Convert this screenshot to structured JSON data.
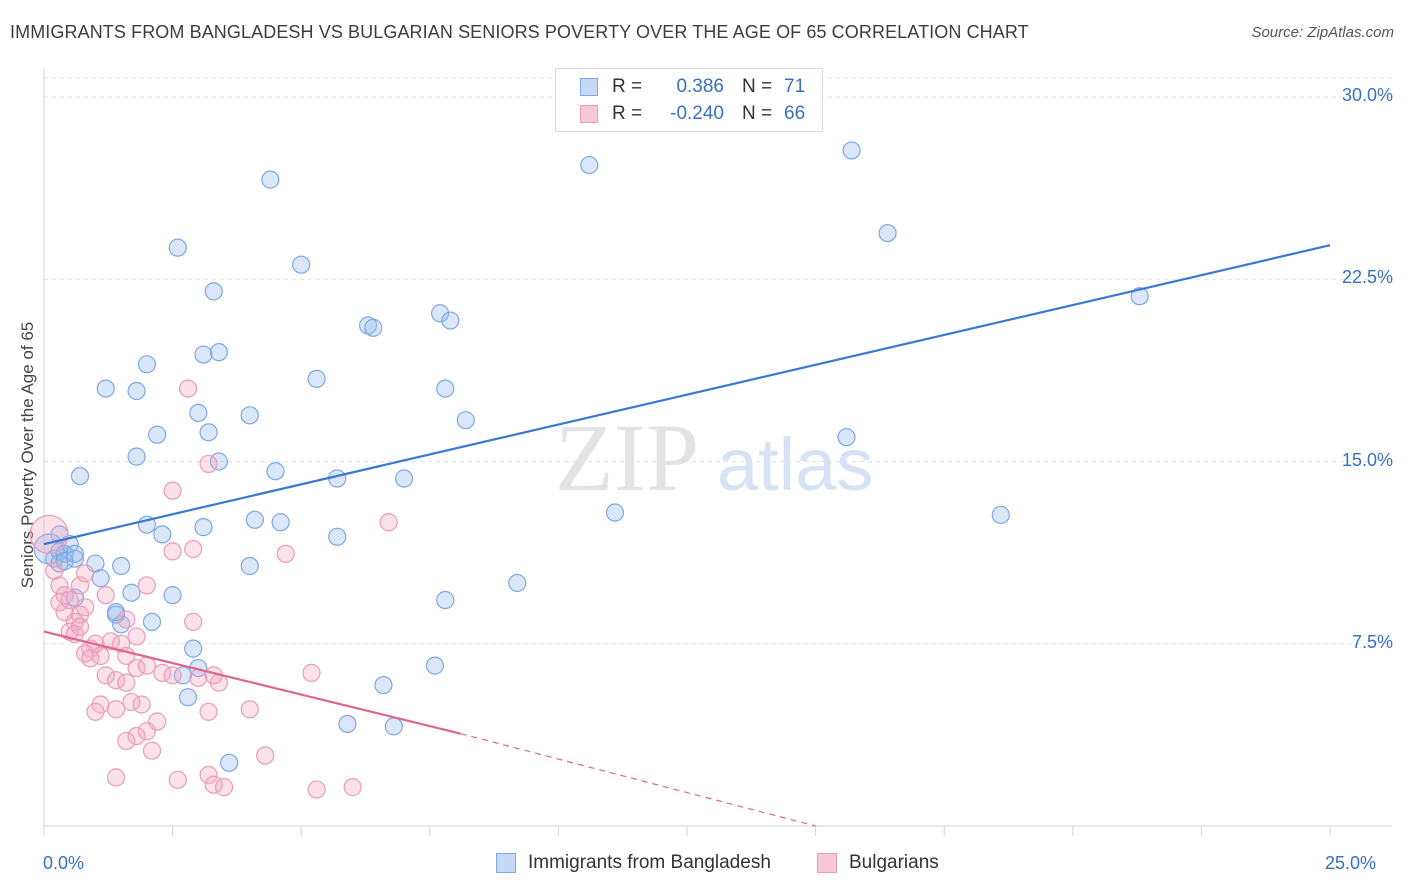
{
  "title": "IMMIGRANTS FROM BANGLADESH VS BULGARIAN SENIORS POVERTY OVER THE AGE OF 65 CORRELATION CHART",
  "source": "Source: ZipAtlas.com",
  "watermark": {
    "zip": "ZIP",
    "atlas": "atlas"
  },
  "colors": {
    "blue": "#3a78d6",
    "blue_fill": "rgba(150,185,235,0.35)",
    "blue_stroke": "#7fa7e3",
    "pink": "#e06590",
    "pink_fill": "rgba(240,170,195,0.35)",
    "pink_stroke": "#ea9cb8",
    "grid": "#dde3ea",
    "axis_text": "#3a6fc4"
  },
  "legend_top": [
    {
      "r_label": "R =",
      "r_value": "0.386",
      "n_label": "N =",
      "n_value": "71",
      "color": "blue"
    },
    {
      "r_label": "R =",
      "r_value": "-0.240",
      "n_label": "N =",
      "n_value": "66",
      "color": "pink"
    }
  ],
  "chart_data": {
    "type": "scatter",
    "title": "IMMIGRANTS FROM BANGLADESH VS BULGARIAN SENIORS POVERTY OVER THE AGE OF 65 CORRELATION CHART",
    "xlabel": "",
    "ylabel": "Seniors Poverty Over the Age of 65",
    "xlim": [
      0,
      25
    ],
    "ylim": [
      0,
      30.5
    ],
    "x_tick_labels": [
      "0.0%",
      "25.0%"
    ],
    "y_tick_labels": [
      "7.5%",
      "15.0%",
      "22.5%",
      "30.0%"
    ],
    "y_ticks": [
      7.5,
      15.0,
      22.5,
      30.0
    ],
    "grid": true,
    "legend_position": "top-center",
    "series": [
      {
        "name": "Immigrants from Bangladesh",
        "color": "blue",
        "trend": {
          "x": [
            0,
            25
          ],
          "y": [
            11.6,
            23.9
          ]
        },
        "points": [
          [
            0.1,
            11.4
          ],
          [
            0.2,
            11.0
          ],
          [
            0.3,
            11.3
          ],
          [
            0.4,
            11.2
          ],
          [
            0.3,
            12.0
          ],
          [
            0.5,
            11.6
          ],
          [
            0.6,
            11.0
          ],
          [
            0.3,
            10.8
          ],
          [
            0.4,
            10.9
          ],
          [
            0.6,
            9.4
          ],
          [
            1.0,
            10.8
          ],
          [
            1.1,
            10.2
          ],
          [
            1.5,
            10.7
          ],
          [
            1.7,
            9.6
          ],
          [
            1.4,
            8.7
          ],
          [
            1.5,
            8.3
          ],
          [
            2.1,
            8.4
          ],
          [
            2.5,
            9.5
          ],
          [
            2.3,
            12.0
          ],
          [
            2.0,
            12.4
          ],
          [
            2.7,
            6.2
          ],
          [
            2.8,
            5.3
          ],
          [
            2.9,
            7.3
          ],
          [
            3.0,
            6.5
          ],
          [
            3.6,
            2.6
          ],
          [
            3.1,
            12.3
          ],
          [
            3.4,
            15.0
          ],
          [
            3.2,
            16.2
          ],
          [
            3.0,
            17.0
          ],
          [
            2.2,
            16.1
          ],
          [
            1.8,
            15.2
          ],
          [
            1.2,
            18.0
          ],
          [
            1.8,
            17.9
          ],
          [
            2.0,
            19.0
          ],
          [
            3.1,
            19.4
          ],
          [
            3.4,
            19.5
          ],
          [
            3.3,
            22.0
          ],
          [
            2.6,
            23.8
          ],
          [
            0.7,
            14.4
          ],
          [
            0.6,
            11.2
          ],
          [
            4.0,
            16.9
          ],
          [
            4.1,
            12.6
          ],
          [
            4.6,
            12.5
          ],
          [
            4.5,
            14.6
          ],
          [
            4.0,
            10.7
          ],
          [
            5.3,
            18.4
          ],
          [
            5.7,
            14.3
          ],
          [
            5.7,
            11.9
          ],
          [
            6.3,
            20.6
          ],
          [
            6.4,
            20.5
          ],
          [
            5.0,
            23.1
          ],
          [
            4.4,
            26.6
          ],
          [
            7.7,
            21.1
          ],
          [
            7.9,
            20.8
          ],
          [
            7.8,
            18.0
          ],
          [
            8.2,
            16.7
          ],
          [
            7.0,
            14.3
          ],
          [
            7.8,
            9.3
          ],
          [
            7.6,
            6.6
          ],
          [
            6.6,
            5.8
          ],
          [
            6.8,
            4.1
          ],
          [
            5.9,
            4.2
          ],
          [
            9.2,
            10.0
          ],
          [
            10.6,
            27.2
          ],
          [
            11.1,
            12.9
          ],
          [
            15.7,
            27.8
          ],
          [
            16.4,
            24.4
          ],
          [
            15.6,
            16.0
          ],
          [
            18.6,
            12.8
          ],
          [
            21.3,
            21.8
          ],
          [
            1.4,
            8.8
          ]
        ]
      },
      {
        "name": "Bulgarians",
        "color": "pink",
        "trend": {
          "x": [
            0,
            8.1
          ],
          "y": [
            8.0,
            3.8
          ]
        },
        "trend_dashed": {
          "x": [
            8.1,
            15.0
          ],
          "y": [
            3.8,
            0.0
          ]
        },
        "points": [
          [
            0.1,
            12.0
          ],
          [
            0.2,
            10.5
          ],
          [
            0.3,
            9.9
          ],
          [
            0.3,
            9.2
          ],
          [
            0.4,
            8.8
          ],
          [
            0.5,
            9.3
          ],
          [
            0.6,
            8.4
          ],
          [
            0.7,
            8.7
          ],
          [
            0.8,
            9.0
          ],
          [
            0.5,
            8.0
          ],
          [
            0.6,
            7.9
          ],
          [
            0.7,
            8.2
          ],
          [
            0.9,
            7.3
          ],
          [
            1.0,
            7.5
          ],
          [
            1.1,
            7.0
          ],
          [
            0.8,
            7.1
          ],
          [
            0.9,
            6.9
          ],
          [
            1.3,
            7.6
          ],
          [
            1.5,
            7.5
          ],
          [
            1.6,
            7.0
          ],
          [
            1.2,
            6.2
          ],
          [
            1.4,
            6.0
          ],
          [
            1.6,
            5.9
          ],
          [
            1.8,
            6.5
          ],
          [
            2.0,
            6.6
          ],
          [
            2.3,
            6.3
          ],
          [
            2.5,
            6.2
          ],
          [
            1.9,
            5.0
          ],
          [
            1.7,
            5.1
          ],
          [
            1.4,
            4.8
          ],
          [
            1.1,
            5.0
          ],
          [
            1.0,
            4.7
          ],
          [
            1.8,
            3.7
          ],
          [
            1.6,
            3.5
          ],
          [
            2.0,
            3.9
          ],
          [
            2.1,
            3.1
          ],
          [
            2.2,
            4.3
          ],
          [
            1.4,
            2.0
          ],
          [
            2.6,
            1.9
          ],
          [
            3.2,
            2.1
          ],
          [
            3.3,
            1.7
          ],
          [
            3.5,
            1.6
          ],
          [
            4.3,
            2.9
          ],
          [
            5.3,
            1.5
          ],
          [
            6.0,
            1.6
          ],
          [
            4.0,
            4.8
          ],
          [
            3.2,
            4.7
          ],
          [
            3.4,
            5.9
          ],
          [
            3.0,
            6.1
          ],
          [
            3.3,
            6.2
          ],
          [
            2.9,
            8.4
          ],
          [
            2.9,
            11.4
          ],
          [
            2.5,
            11.3
          ],
          [
            2.5,
            13.8
          ],
          [
            3.2,
            14.9
          ],
          [
            2.8,
            18.0
          ],
          [
            4.7,
            11.2
          ],
          [
            5.2,
            6.3
          ],
          [
            6.7,
            12.5
          ],
          [
            1.6,
            8.5
          ],
          [
            1.2,
            9.5
          ],
          [
            2.0,
            9.9
          ],
          [
            0.4,
            9.5
          ],
          [
            0.7,
            9.9
          ],
          [
            1.8,
            7.8
          ],
          [
            0.8,
            10.4
          ]
        ]
      }
    ]
  },
  "bottom_legend": [
    {
      "label": "Immigrants from Bangladesh",
      "color": "blue"
    },
    {
      "label": "Bulgarians",
      "color": "pink"
    }
  ]
}
